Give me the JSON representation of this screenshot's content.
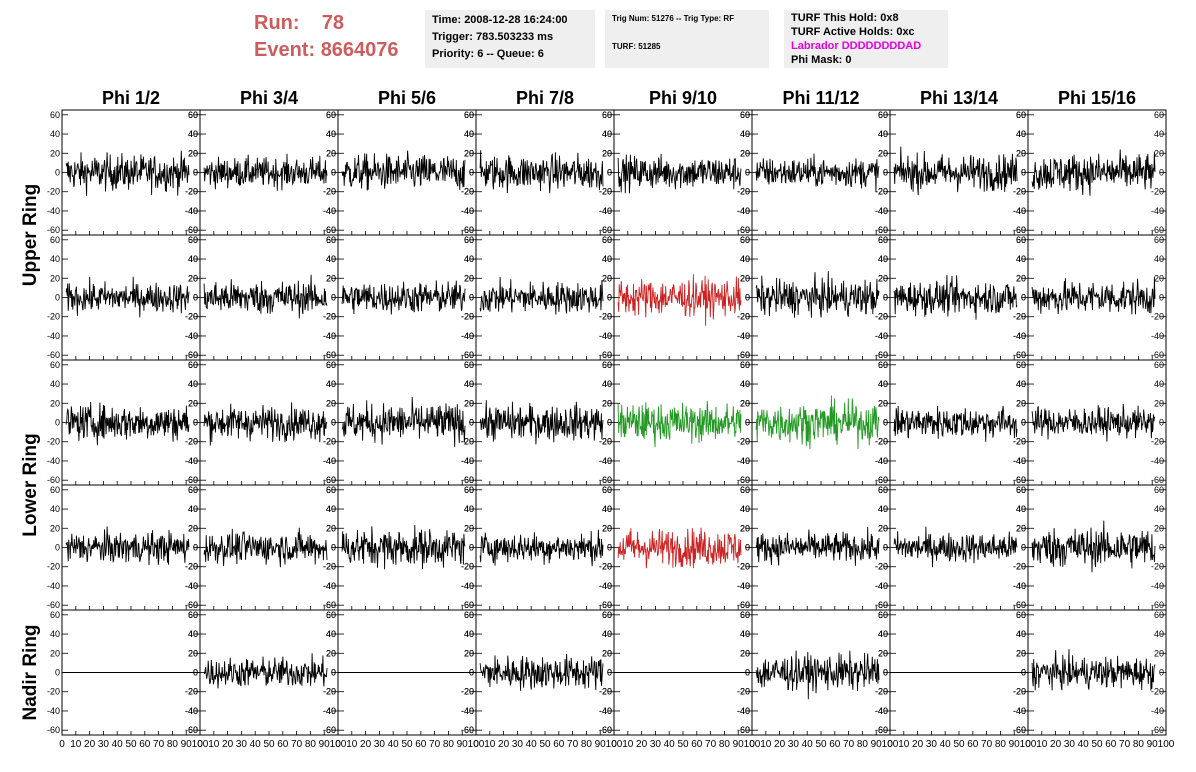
{
  "header": {
    "run_label": "Run:",
    "run_value": "78",
    "event_label": "Event:",
    "event_value": "8664076",
    "time": "Time: 2008-12-28 16:24:00",
    "trigger": "Trigger: 783.503233 ms",
    "priority": "Priority: 6 -- Queue: 6",
    "trig_num": "Trig Num: 51276 -- Trig Type: RF",
    "turf": "TURF: 51285",
    "turf_this_hold": "TURF This Hold: 0x8",
    "turf_active_holds": "TURF Active Holds: 0xc",
    "labrador": "Labrador DDDDDDDDAD",
    "phi_mask": "Phi Mask: 0"
  },
  "colors": {
    "run_text": "#cd5c5c",
    "labrador_text": "#e500e5",
    "trace_default": "#000000",
    "trace_red": "#cc2222",
    "trace_green": "#229922",
    "info_bg": "#efefef"
  },
  "chart_data": {
    "type": "line",
    "column_titles": [
      "Phi 1/2",
      "Phi 3/4",
      "Phi 5/6",
      "Phi 7/8",
      "Phi 9/10",
      "Phi 11/12",
      "Phi 13/14",
      "Phi 15/16"
    ],
    "row_labels": [
      {
        "text": "Upper Ring",
        "rows": [
          0,
          1
        ]
      },
      {
        "text": "Lower Ring",
        "rows": [
          2,
          3
        ]
      },
      {
        "text": "Nadir Ring",
        "rows": [
          4,
          4
        ]
      }
    ],
    "xlim": [
      0,
      100
    ],
    "ylim": [
      -65,
      65
    ],
    "x_ticks": [
      "0",
      "10",
      "20",
      "30",
      "40",
      "50",
      "60",
      "70",
      "80",
      "90",
      "100"
    ],
    "y_ticks": [
      "60",
      "40",
      "20",
      "0",
      "-20",
      "-40",
      "-60"
    ],
    "panels": [
      [
        {
          "trace": "noise",
          "amp": 17,
          "color": "black"
        },
        {
          "trace": "noise",
          "amp": 14,
          "color": "black"
        },
        {
          "trace": "noise",
          "amp": 17,
          "color": "black"
        },
        {
          "trace": "noise",
          "amp": 17,
          "color": "black"
        },
        {
          "trace": "noise",
          "amp": 16,
          "color": "black"
        },
        {
          "trace": "noise",
          "amp": 14,
          "color": "black"
        },
        {
          "trace": "noise",
          "amp": 17,
          "color": "black"
        },
        {
          "trace": "noise",
          "amp": 18,
          "color": "black"
        }
      ],
      [
        {
          "trace": "noise",
          "amp": 14,
          "color": "black"
        },
        {
          "trace": "noise",
          "amp": 16,
          "color": "black"
        },
        {
          "trace": "noise",
          "amp": 15,
          "color": "black"
        },
        {
          "trace": "noise",
          "amp": 15,
          "color": "black"
        },
        {
          "trace": "noise",
          "amp": 18,
          "color": "red"
        },
        {
          "trace": "noise",
          "amp": 17,
          "color": "black"
        },
        {
          "trace": "noise",
          "amp": 16,
          "color": "black"
        },
        {
          "trace": "noise",
          "amp": 16,
          "color": "black"
        }
      ],
      [
        {
          "trace": "noise",
          "amp": 17,
          "color": "black"
        },
        {
          "trace": "noise",
          "amp": 16,
          "color": "black"
        },
        {
          "trace": "noise",
          "amp": 18,
          "color": "black"
        },
        {
          "trace": "noise",
          "amp": 17,
          "color": "black"
        },
        {
          "trace": "noise",
          "amp": 18,
          "color": "green"
        },
        {
          "trace": "noise",
          "amp": 19,
          "color": "green"
        },
        {
          "trace": "noise",
          "amp": 15,
          "color": "black"
        },
        {
          "trace": "noise",
          "amp": 14,
          "color": "black"
        }
      ],
      [
        {
          "trace": "noise",
          "amp": 15,
          "color": "black"
        },
        {
          "trace": "noise",
          "amp": 15,
          "color": "black"
        },
        {
          "trace": "noise",
          "amp": 18,
          "color": "black"
        },
        {
          "trace": "noise",
          "amp": 14,
          "color": "black"
        },
        {
          "trace": "noise",
          "amp": 18,
          "color": "red"
        },
        {
          "trace": "noise",
          "amp": 14,
          "color": "black"
        },
        {
          "trace": "noise",
          "amp": 14,
          "color": "black"
        },
        {
          "trace": "noise",
          "amp": 19,
          "color": "black"
        }
      ],
      [
        {
          "trace": "flat",
          "amp": 0,
          "color": "black"
        },
        {
          "trace": "noise",
          "amp": 14,
          "color": "black"
        },
        {
          "trace": "flat",
          "amp": 0,
          "color": "black"
        },
        {
          "trace": "noise",
          "amp": 16,
          "color": "black"
        },
        {
          "trace": "flat",
          "amp": 0,
          "color": "black"
        },
        {
          "trace": "noise",
          "amp": 17,
          "color": "black"
        },
        {
          "trace": "flat",
          "amp": 0,
          "color": "black"
        },
        {
          "trace": "noise",
          "amp": 15,
          "color": "black"
        }
      ]
    ]
  }
}
